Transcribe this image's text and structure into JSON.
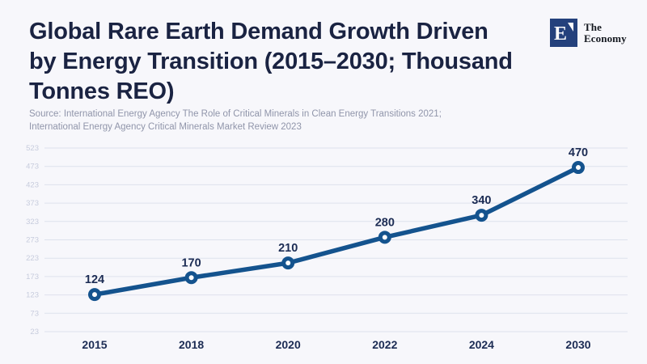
{
  "page": {
    "background": "#f7f7fb"
  },
  "header": {
    "title_line1": "Global Rare Earth Demand Growth Driven",
    "title_line2": "by Energy Transition (2015–2030; Thousand",
    "title_line3": "Tonnes REO)",
    "source_line1": "Source: International Energy Agency The Role of Critical Minerals in Clean Energy Transitions 2021;",
    "source_line2": "International Energy Agency Critical Minerals Market Review 2023"
  },
  "logo": {
    "monogram": "E",
    "name_line1": "The",
    "name_line2": "Economy",
    "square_color": "#24417c"
  },
  "chart_data": {
    "type": "line",
    "title": "Global Rare Earth Demand Growth Driven by Energy Transition (2015–2030; Thousand Tonnes REO)",
    "categories": [
      "2015",
      "2018",
      "2020",
      "2022",
      "2024",
      "2030"
    ],
    "values": [
      124,
      170,
      210,
      280,
      340,
      470
    ],
    "data_labels": [
      "124",
      "170",
      "210",
      "280",
      "340",
      "470"
    ],
    "ylabel": "",
    "xlabel": "",
    "ylim": [
      23,
      523
    ],
    "yticks": [
      23,
      73,
      123,
      173,
      223,
      273,
      323,
      373,
      423,
      473,
      523
    ],
    "grid": true,
    "legend": "none",
    "colors": {
      "line": "#14538e",
      "marker_fill": "#ffffff",
      "grid": "#dee2ed",
      "ytick_label": "#c7ccdd",
      "xtick_label": "#1c2c54",
      "value_label": "#1c2c54"
    }
  }
}
